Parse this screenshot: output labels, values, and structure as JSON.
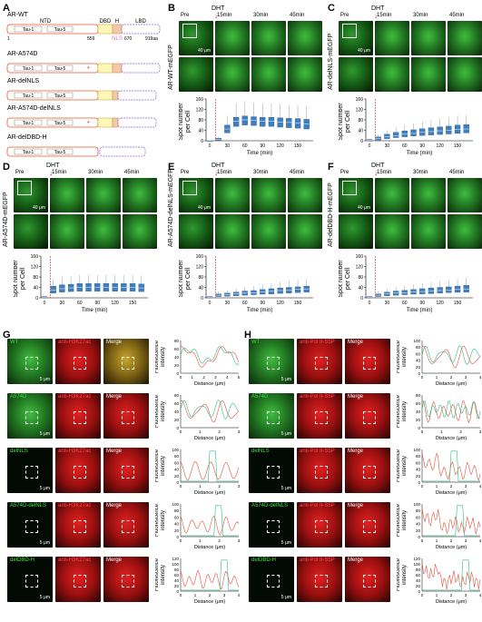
{
  "panels": {
    "A": "A",
    "B": "B",
    "C": "C",
    "D": "D",
    "E": "E",
    "F": "F",
    "G": "G",
    "H": "H"
  },
  "panelA": {
    "constructs": [
      {
        "name": "AR-WT"
      },
      {
        "name": "AR-A574D"
      },
      {
        "name": "AR-delNLS"
      },
      {
        "name": "AR-A574D-delNLS"
      },
      {
        "name": "AR-delDBD-H"
      }
    ],
    "domains": {
      "ntd": "NTD",
      "dbd": "DBD",
      "h": "H",
      "lbd": "LBD",
      "nls": "NLS",
      "tau1": "Tau-1",
      "tau5": "Tau-5"
    },
    "positions": {
      "p1": "1",
      "p559": "559",
      "p670": "670",
      "p919": "919aa"
    }
  },
  "timecourse": {
    "dht_label": "DHT",
    "time_labels": [
      "Pre",
      "15min",
      "30min",
      "45min"
    ],
    "scale_label": "40 μm",
    "ylabel": "Spot Number\nper Cell",
    "xlabel": "Time (min)"
  },
  "cell_panels": [
    {
      "id": "B",
      "name": "AR-WT-mEGFP"
    },
    {
      "id": "C",
      "name": "AR-delNLS-mEGFP"
    },
    {
      "id": "D",
      "name": "AR-A574D-mEGFP"
    },
    {
      "id": "E",
      "name": "AR-A574D-delNLS-mEGFP"
    },
    {
      "id": "F",
      "name": "AR-delDBD-H-mEGFP"
    }
  ],
  "chart_data": [
    {
      "panel": "B",
      "type": "box",
      "x": [
        0,
        15,
        30,
        45,
        60,
        75,
        90,
        105,
        120,
        135,
        150,
        165
      ],
      "median": [
        0,
        5,
        45,
        75,
        80,
        78,
        75,
        75,
        72,
        70,
        68,
        65
      ],
      "q1": [
        0,
        2,
        30,
        55,
        60,
        58,
        55,
        55,
        52,
        50,
        48,
        45
      ],
      "q3": [
        0,
        10,
        60,
        90,
        95,
        92,
        90,
        90,
        88,
        86,
        85,
        82
      ],
      "ylim": [
        0,
        160
      ],
      "xticks": [
        0,
        30,
        60,
        90,
        120,
        150
      ],
      "yticks": [
        0,
        40,
        80,
        120,
        160
      ]
    },
    {
      "panel": "C",
      "type": "box",
      "x": [
        0,
        15,
        30,
        45,
        60,
        75,
        90,
        105,
        120,
        135,
        150,
        165
      ],
      "median": [
        2,
        8,
        15,
        20,
        25,
        28,
        32,
        35,
        38,
        40,
        43,
        45
      ],
      "q1": [
        0,
        3,
        8,
        12,
        15,
        18,
        20,
        22,
        24,
        26,
        28,
        30
      ],
      "q3": [
        5,
        15,
        25,
        32,
        38,
        42,
        46,
        50,
        53,
        56,
        60,
        62
      ],
      "ylim": [
        0,
        160
      ],
      "xticks": [
        0,
        30,
        60,
        90,
        120,
        150
      ],
      "yticks": [
        0,
        40,
        80,
        120,
        160
      ]
    },
    {
      "panel": "D",
      "type": "box",
      "x": [
        0,
        15,
        30,
        45,
        60,
        75,
        90,
        105,
        120,
        135,
        150,
        165
      ],
      "median": [
        2,
        30,
        35,
        38,
        40,
        40,
        40,
        40,
        40,
        40,
        40,
        38
      ],
      "q1": [
        0,
        18,
        22,
        24,
        25,
        25,
        25,
        25,
        25,
        25,
        25,
        24
      ],
      "q3": [
        5,
        45,
        50,
        52,
        55,
        55,
        55,
        55,
        55,
        55,
        55,
        53
      ],
      "ylim": [
        0,
        160
      ],
      "xticks": [
        0,
        30,
        60,
        90,
        120,
        150
      ],
      "yticks": [
        0,
        40,
        80,
        120,
        160
      ]
    },
    {
      "panel": "E",
      "type": "box",
      "x": [
        0,
        15,
        30,
        45,
        60,
        75,
        90,
        105,
        120,
        135,
        150,
        165
      ],
      "median": [
        2,
        10,
        12,
        15,
        18,
        20,
        22,
        25,
        28,
        30,
        32,
        34
      ],
      "q1": [
        0,
        5,
        6,
        8,
        10,
        12,
        14,
        15,
        17,
        18,
        20,
        22
      ],
      "q3": [
        5,
        15,
        18,
        22,
        26,
        28,
        32,
        35,
        38,
        40,
        42,
        45
      ],
      "ylim": [
        0,
        160
      ],
      "xticks": [
        0,
        30,
        60,
        90,
        120,
        150
      ],
      "yticks": [
        0,
        40,
        80,
        120,
        160
      ]
    },
    {
      "panel": "F",
      "type": "box",
      "x": [
        0,
        15,
        30,
        45,
        60,
        75,
        90,
        105,
        120,
        135,
        150,
        165
      ],
      "median": [
        2,
        10,
        15,
        18,
        20,
        22,
        24,
        26,
        28,
        30,
        32,
        34
      ],
      "q1": [
        0,
        5,
        8,
        10,
        12,
        14,
        15,
        16,
        18,
        20,
        21,
        22
      ],
      "q3": [
        5,
        15,
        22,
        26,
        29,
        32,
        35,
        38,
        40,
        42,
        45,
        48
      ],
      "ylim": [
        0,
        160
      ],
      "xticks": [
        0,
        30,
        60,
        90,
        120,
        150
      ],
      "yticks": [
        0,
        40,
        80,
        120,
        160
      ]
    }
  ],
  "coloc": {
    "ylabel": "Fluorescence\nintensity",
    "xlabel": "Distance (μm)",
    "merge": "Merge",
    "scale": "5 μm",
    "G": {
      "antibody": "anti-H3K27ac",
      "rows": [
        {
          "name": "WT",
          "xmax": 5,
          "xticks": [
            0,
            1,
            2,
            3,
            4,
            5
          ],
          "yticks": [
            0,
            20,
            40,
            60,
            80
          ]
        },
        {
          "name": "A574D",
          "xmax": 3,
          "xticks": [
            0,
            1,
            2,
            3
          ],
          "yticks": [
            0,
            20,
            40,
            60,
            80
          ]
        },
        {
          "name": "delNLS",
          "xmax": 3,
          "xticks": [
            0,
            1,
            2,
            3
          ],
          "yticks": [
            0,
            20,
            40,
            60,
            80,
            100
          ]
        },
        {
          "name": "A574D-delNLS",
          "xmax": 3,
          "xticks": [
            0,
            1,
            2,
            3
          ],
          "yticks": [
            0,
            20,
            40,
            60,
            80,
            100
          ]
        },
        {
          "name": "delDBD-H",
          "xmax": 4,
          "xticks": [
            0,
            1,
            2,
            3,
            4
          ],
          "yticks": [
            0,
            20,
            40,
            60,
            80,
            100,
            120
          ]
        }
      ]
    },
    "H": {
      "antibody": "anti-Pol II-S5P",
      "rows": [
        {
          "name": "WT",
          "xmax": 4,
          "xticks": [
            0,
            1,
            2,
            3,
            4
          ],
          "yticks": [
            0,
            20,
            40,
            60,
            80,
            100
          ]
        },
        {
          "name": "A574D",
          "xmax": 3,
          "xticks": [
            0,
            1,
            2,
            3
          ],
          "yticks": [
            0,
            20,
            40,
            60,
            80
          ]
        },
        {
          "name": "delNLS",
          "xmax": 4,
          "xticks": [
            0,
            1,
            2,
            3,
            4
          ],
          "yticks": [
            0,
            20,
            40,
            60,
            80,
            100
          ]
        },
        {
          "name": "A574D-delNLS",
          "xmax": 4,
          "xticks": [
            0,
            1,
            2,
            3,
            4
          ],
          "yticks": [
            0,
            20,
            40,
            60,
            80,
            100
          ]
        },
        {
          "name": "delDBD-H",
          "xmax": 4,
          "xticks": [
            0,
            1,
            2,
            3,
            4
          ],
          "yticks": [
            0,
            20,
            40,
            60,
            80,
            100,
            120
          ]
        }
      ]
    }
  },
  "colors": {
    "green": "#2dbd8a",
    "red": "#e8503a",
    "box": "#3d7fc0",
    "dht": "#d42020",
    "tau": "#e8552a"
  }
}
